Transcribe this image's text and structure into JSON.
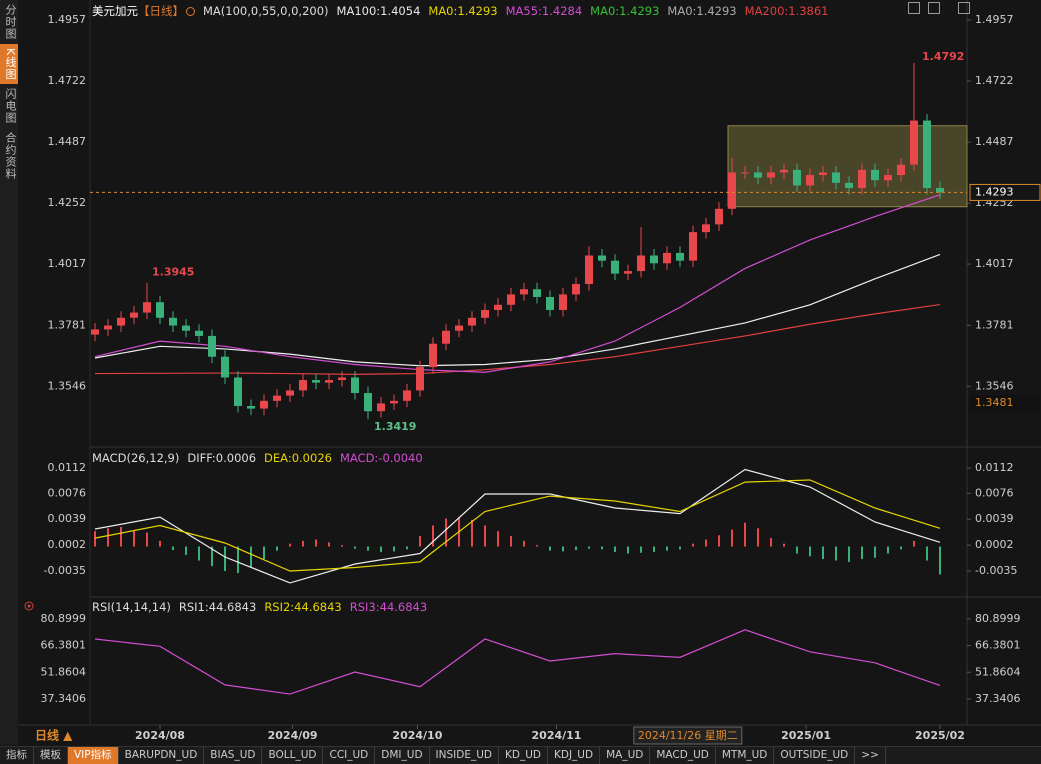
{
  "sidebar": {
    "tabs": [
      "分时图",
      "K线图",
      "闪电图",
      "合约资料"
    ],
    "active": 1
  },
  "chart_data": {
    "type": "candlestick",
    "title": "美元加元",
    "period": "【日线】",
    "indicator": "MA(100,0,55,0,0,200)",
    "legend": [
      {
        "label": "MA100:1.4054",
        "color": "#e8e8e8"
      },
      {
        "label": "MA0:1.4293",
        "color": "#e6d400"
      },
      {
        "label": "MA55:1.4284",
        "color": "#d24ed2"
      },
      {
        "label": "MA0:1.4293",
        "color": "#38c038"
      },
      {
        "label": "MA0:1.4293",
        "color": "#aaaaaa"
      },
      {
        "label": "MA200:1.3861",
        "color": "#e04040"
      }
    ],
    "candles": {
      "open": [
        1.3745,
        1.3765,
        1.378,
        1.381,
        1.383,
        1.387,
        1.381,
        1.378,
        1.376,
        1.374,
        1.366,
        1.358,
        1.347,
        1.346,
        1.349,
        1.351,
        1.353,
        1.357,
        1.356,
        1.357,
        1.358,
        1.352,
        1.345,
        1.348,
        1.349,
        1.353,
        1.362,
        1.371,
        1.376,
        1.378,
        1.381,
        1.384,
        1.386,
        1.39,
        1.392,
        1.389,
        1.384,
        1.39,
        1.394,
        1.405,
        1.403,
        1.398,
        1.399,
        1.405,
        1.402,
        1.406,
        1.403,
        1.414,
        1.417,
        1.423,
        1.437,
        1.437,
        1.435,
        1.437,
        1.438,
        1.432,
        1.436,
        1.437,
        1.433,
        1.431,
        1.438,
        1.434,
        1.436,
        1.44,
        1.457,
        1.431
      ],
      "high": [
        1.379,
        1.3805,
        1.3835,
        1.3855,
        1.3945,
        1.3895,
        1.3835,
        1.3805,
        1.3785,
        1.3765,
        1.3685,
        1.3605,
        1.3495,
        1.3515,
        1.3535,
        1.3555,
        1.3595,
        1.3595,
        1.3595,
        1.3605,
        1.3605,
        1.3545,
        1.3505,
        1.3515,
        1.3555,
        1.3645,
        1.3735,
        1.3785,
        1.3805,
        1.3835,
        1.3865,
        1.3885,
        1.3925,
        1.3945,
        1.3945,
        1.3915,
        1.3925,
        1.3965,
        1.4085,
        1.4075,
        1.4055,
        1.4015,
        1.416,
        1.4075,
        1.4085,
        1.4085,
        1.4165,
        1.4195,
        1.4255,
        1.4425,
        1.4395,
        1.4395,
        1.4395,
        1.4405,
        1.4405,
        1.4385,
        1.4395,
        1.4395,
        1.4355,
        1.4405,
        1.4405,
        1.4385,
        1.4425,
        1.4792,
        1.4595,
        1.4335
      ],
      "low": [
        1.372,
        1.374,
        1.3755,
        1.3785,
        1.3805,
        1.3785,
        1.3755,
        1.3735,
        1.3715,
        1.3635,
        1.3555,
        1.3445,
        1.3435,
        1.3435,
        1.3465,
        1.3485,
        1.3505,
        1.3535,
        1.3535,
        1.3545,
        1.3495,
        1.3419,
        1.3425,
        1.3455,
        1.3465,
        1.3505,
        1.3595,
        1.3685,
        1.3735,
        1.3755,
        1.3785,
        1.3815,
        1.3835,
        1.3875,
        1.3865,
        1.3815,
        1.3815,
        1.3875,
        1.3915,
        1.4005,
        1.3955,
        1.3955,
        1.3965,
        1.3995,
        1.3995,
        1.4005,
        1.4005,
        1.4115,
        1.4145,
        1.4205,
        1.4345,
        1.4325,
        1.4325,
        1.4345,
        1.4295,
        1.4295,
        1.4335,
        1.4305,
        1.4285,
        1.4285,
        1.4315,
        1.4315,
        1.4335,
        1.4375,
        1.4285,
        1.4268
      ],
      "close": [
        1.3765,
        1.378,
        1.381,
        1.383,
        1.387,
        1.381,
        1.378,
        1.376,
        1.374,
        1.366,
        1.358,
        1.347,
        1.346,
        1.349,
        1.351,
        1.353,
        1.357,
        1.356,
        1.357,
        1.358,
        1.352,
        1.345,
        1.348,
        1.349,
        1.353,
        1.362,
        1.371,
        1.376,
        1.378,
        1.381,
        1.384,
        1.386,
        1.39,
        1.392,
        1.389,
        1.384,
        1.39,
        1.394,
        1.405,
        1.403,
        1.398,
        1.399,
        1.405,
        1.402,
        1.406,
        1.403,
        1.414,
        1.417,
        1.423,
        1.437,
        1.437,
        1.435,
        1.437,
        1.438,
        1.432,
        1.436,
        1.437,
        1.433,
        1.431,
        1.438,
        1.434,
        1.436,
        1.44,
        1.457,
        1.431,
        1.4293
      ]
    },
    "up_color": "#e8474c",
    "down_color": "#3ab07a",
    "ylim": [
      1.3339,
      1.4996
    ],
    "yticks": [
      1.4957,
      1.4722,
      1.4487,
      1.4252,
      1.4017,
      1.3781,
      1.3546
    ],
    "price_tag": 1.3481,
    "range_box": {
      "from": 49,
      "low": 1.4238,
      "high": 1.455
    },
    "overlay_index": [
      0,
      5,
      10,
      15,
      20,
      25,
      30,
      35,
      40,
      45,
      50,
      55,
      60,
      65
    ],
    "overlays": [
      {
        "color": "#e04040",
        "values": [
          1.3595,
          1.3596,
          1.3597,
          1.3595,
          1.3592,
          1.3595,
          1.361,
          1.363,
          1.366,
          1.37,
          1.374,
          1.3785,
          1.3825,
          1.3861
        ]
      },
      {
        "color": "#f0f0f0",
        "values": [
          1.3655,
          1.37,
          1.369,
          1.367,
          1.364,
          1.3625,
          1.363,
          1.365,
          1.369,
          1.374,
          1.379,
          1.386,
          1.396,
          1.4054
        ]
      },
      {
        "color": "#d24ed2",
        "values": [
          1.366,
          1.372,
          1.37,
          1.366,
          1.363,
          1.361,
          1.36,
          1.364,
          1.372,
          1.385,
          1.4,
          1.411,
          1.42,
          1.4284
        ]
      }
    ],
    "xticks": [
      {
        "value": 5,
        "label": "2024/08"
      },
      {
        "value": 15.2,
        "label": "2024/09"
      },
      {
        "value": 24.8,
        "label": "2024/10"
      },
      {
        "value": 35.5,
        "label": "2024/11"
      },
      {
        "value": 54.7,
        "label": "2025/01"
      },
      {
        "value": 65,
        "label": "2025/02"
      }
    ],
    "cursor": {
      "index": 45.6,
      "label": "2024/11/26 星期二"
    },
    "period_switch": "日线 ▲"
  },
  "macd": {
    "title": "MACD(26,12,9)",
    "legend": [
      {
        "label": "DIFF:0.0006",
        "color": "#dddddd"
      },
      {
        "label": "DEA:0.0026",
        "color": "#e6d400"
      },
      {
        "label": "MACD:-0.0040",
        "color": "#d24ed2"
      }
    ],
    "ylim": [
      -0.0065,
      0.0135
    ],
    "yticks": [
      0.0112,
      0.0076,
      0.0039,
      0.0002,
      -0.0035
    ],
    "histogram": [
      0.0022,
      0.0026,
      0.0028,
      0.0022,
      0.002,
      0.0008,
      -0.0005,
      -0.0012,
      -0.002,
      -0.0028,
      -0.0035,
      -0.0038,
      -0.003,
      -0.0018,
      -0.0006,
      0.0004,
      0.0008,
      0.001,
      0.0006,
      0.0002,
      -0.0003,
      -0.0006,
      -0.0008,
      -0.0007,
      -0.0004,
      0.0015,
      0.003,
      0.004,
      0.0042,
      0.0038,
      0.003,
      0.0022,
      0.0015,
      0.0008,
      0.0002,
      -0.0006,
      -0.0007,
      -0.0005,
      -0.0003,
      -0.0004,
      -0.0008,
      -0.001,
      -0.0009,
      -0.0008,
      -0.0006,
      -0.0004,
      0.0004,
      0.001,
      0.0016,
      0.0024,
      0.0034,
      0.0026,
      0.0012,
      0.0004,
      -0.001,
      -0.0014,
      -0.0018,
      -0.002,
      -0.0022,
      -0.0018,
      -0.0016,
      -0.001,
      -0.0004,
      0.0008,
      -0.002,
      -0.004
    ],
    "diff": {
      "color": "#eeeeee",
      "values": [
        0.0025,
        0.0042,
        -0.0015,
        -0.0052,
        -0.0025,
        -0.001,
        0.0075,
        0.0075,
        0.0055,
        0.0047,
        0.011,
        0.0085,
        0.0035,
        0.0006
      ]
    },
    "dea": {
      "color": "#e6d400",
      "values": [
        0.0012,
        0.003,
        0.0005,
        -0.0035,
        -0.003,
        -0.0022,
        0.005,
        0.0072,
        0.0065,
        0.005,
        0.0092,
        0.0095,
        0.0055,
        0.0026
      ]
    }
  },
  "rsi": {
    "title": "RSI(14,14,14)",
    "legend": [
      {
        "label": "RSI1:44.6843",
        "color": "#dddddd"
      },
      {
        "label": "RSI2:44.6843",
        "color": "#e6d400"
      },
      {
        "label": "RSI3:44.6843",
        "color": "#d24ed2"
      }
    ],
    "ylim": [
      21.5,
      89.6
    ],
    "yticks": [
      80.8999,
      66.3801,
      51.8604,
      37.3406
    ],
    "color": "#d24ed2",
    "values": [
      70,
      66,
      45,
      40,
      52,
      44,
      70,
      58,
      62,
      60,
      75,
      63,
      57,
      44.6843
    ]
  },
  "toolbar": {
    "tabs": [
      "指标",
      "模板",
      "VIP指标",
      "BARUPDN_UD",
      "BIAS_UD",
      "BOLL_UD",
      "CCI_UD",
      "DMI_UD",
      "INSIDE_UD",
      "KD_UD",
      "KDJ_UD",
      "MA_UD",
      "MACD_UD",
      "MTM_UD",
      "OUTSIDE_UD",
      ">>"
    ],
    "active": 2
  }
}
